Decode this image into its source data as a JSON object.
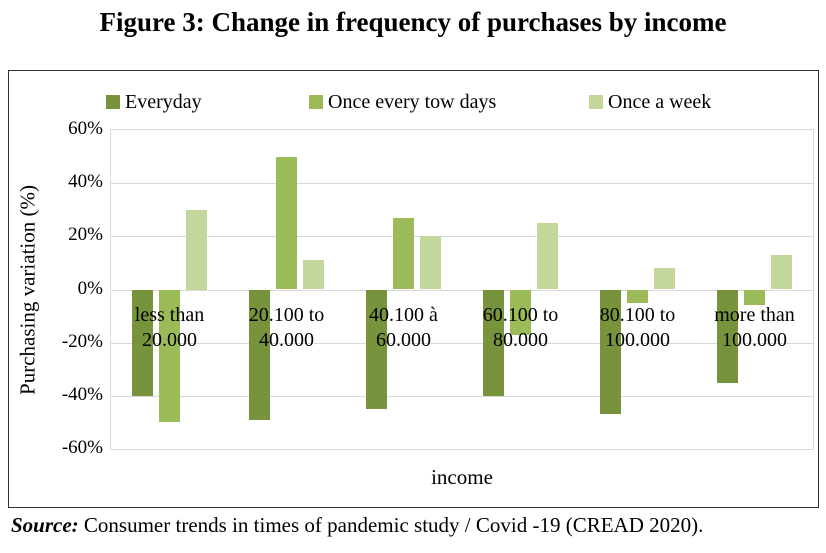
{
  "chart_data": {
    "type": "bar",
    "title": "Figure 3: Change in frequency of purchases by income",
    "xlabel": "income",
    "ylabel": "Purchasing variation (%)",
    "categories": [
      "less than\n20.000",
      "20.100 to\n40.000",
      "40.100 à\n60.000",
      "60.100 to\n80.000",
      "80.100 to\n100.000",
      "more than\n100.000"
    ],
    "series": [
      {
        "name": "Everyday",
        "color": "#77933C",
        "values": [
          -40,
          -49,
          -45,
          -40,
          -47,
          -35
        ]
      },
      {
        "name": "Once every tow days",
        "color": "#9BBB59",
        "values": [
          -50,
          50,
          27,
          -17,
          -5,
          -6
        ]
      },
      {
        "name": "Once a week",
        "color": "#C3D69B",
        "values": [
          30,
          11,
          20,
          25,
          8,
          13
        ]
      }
    ],
    "y_axis": {
      "min": -60,
      "max": 60,
      "step": 20,
      "suffix": "%"
    },
    "legend_position": "top",
    "grid": true,
    "gridline_color": "#D9D9D9",
    "plot_border_color": "#D9D9D9",
    "chart_border_color": "#333333"
  },
  "source": {
    "label": "Source:",
    "text": " Consumer trends in times of pandemic study / Covid -19 (CREAD 2020)."
  }
}
